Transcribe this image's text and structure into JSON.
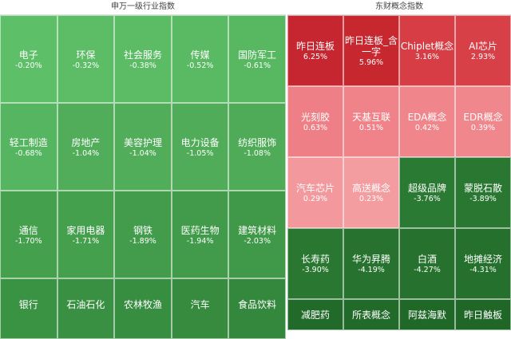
{
  "chart_data": [
    {
      "type": "heatmap",
      "title": "申万一级行业指数",
      "columns": 5,
      "unit": "%",
      "cells": [
        {
          "name": "电子",
          "value": -0.2,
          "label": "-0.20%",
          "color": "#5dbf67"
        },
        {
          "name": "环保",
          "value": -0.32,
          "label": "-0.32%",
          "color": "#5cbd66"
        },
        {
          "name": "社会服务",
          "value": -0.38,
          "label": "-0.38%",
          "color": "#5bbc65"
        },
        {
          "name": "传媒",
          "value": -0.52,
          "label": "-0.52%",
          "color": "#5aba63"
        },
        {
          "name": "国防军工",
          "value": -0.61,
          "label": "-0.61%",
          "color": "#58b862"
        },
        {
          "name": "轻工制造",
          "value": -0.68,
          "label": "-0.68%",
          "color": "#56b560"
        },
        {
          "name": "房地产",
          "value": -1.04,
          "label": "-1.04%",
          "color": "#51ad5a"
        },
        {
          "name": "美容护理",
          "value": -1.04,
          "label": "-1.04%",
          "color": "#51ad5a"
        },
        {
          "name": "电力设备",
          "value": -1.05,
          "label": "-1.05%",
          "color": "#50ac59"
        },
        {
          "name": "纺织服饰",
          "value": -1.08,
          "label": "-1.08%",
          "color": "#4fab58"
        },
        {
          "name": "通信",
          "value": -1.7,
          "label": "-1.70%",
          "color": "#45a04e"
        },
        {
          "name": "家用电器",
          "value": -1.71,
          "label": "-1.71%",
          "color": "#45a04e"
        },
        {
          "name": "钢铁",
          "value": -1.89,
          "label": "-1.89%",
          "color": "#429c4b"
        },
        {
          "name": "医药生物",
          "value": -1.94,
          "label": "-1.94%",
          "color": "#419b4a"
        },
        {
          "name": "建筑材料",
          "value": -2.03,
          "label": "-2.03%",
          "color": "#409948"
        },
        {
          "name": "银行",
          "value": null,
          "label": "",
          "color": "#3a9243"
        },
        {
          "name": "石油石化",
          "value": null,
          "label": "",
          "color": "#399042"
        },
        {
          "name": "农林牧渔",
          "value": null,
          "label": "",
          "color": "#378d40"
        },
        {
          "name": "汽车",
          "value": null,
          "label": "",
          "color": "#368b3f"
        },
        {
          "name": "食品饮料",
          "value": null,
          "label": "",
          "color": "#34883d"
        }
      ]
    },
    {
      "type": "heatmap",
      "title": "东财概念指数",
      "columns": 4,
      "unit": "%",
      "cells": [
        {
          "name": "昨日连板",
          "value": 6.25,
          "label": "6.25%",
          "color": "#c52630"
        },
        {
          "name": "昨日连板_含\n一字",
          "value": 5.96,
          "label": "5.96%",
          "color": "#c7282f"
        },
        {
          "name": "Chiplet概念",
          "value": 3.16,
          "label": "3.16%",
          "color": "#d63d45"
        },
        {
          "name": "AI芯片",
          "value": 2.93,
          "label": "2.93%",
          "color": "#d84048"
        },
        {
          "name": "光刻胶",
          "value": 0.63,
          "label": "0.63%",
          "color": "#ee7f86"
        },
        {
          "name": "天基互联",
          "value": 0.51,
          "label": "0.51%",
          "color": "#ef8389"
        },
        {
          "name": "EDA概念",
          "value": 0.42,
          "label": "0.42%",
          "color": "#f0868c"
        },
        {
          "name": "EDR概念",
          "value": 0.39,
          "label": "0.39%",
          "color": "#f0878d"
        },
        {
          "name": "汽车芯片",
          "value": 0.29,
          "label": "0.29%",
          "color": "#f3999e"
        },
        {
          "name": "高送概念",
          "value": 0.23,
          "label": "0.23%",
          "color": "#f49da1"
        },
        {
          "name": "超级品牌",
          "value": -3.76,
          "label": "-3.76%",
          "color": "#2b7a33"
        },
        {
          "name": "蒙脱石散",
          "value": -3.89,
          "label": "-3.89%",
          "color": "#297731"
        },
        {
          "name": "长寿药",
          "value": -3.9,
          "label": "-3.90%",
          "color": "#297731"
        },
        {
          "name": "华为昇腾",
          "value": -4.19,
          "label": "-4.19%",
          "color": "#26722e"
        },
        {
          "name": "白酒",
          "value": -4.27,
          "label": "-4.27%",
          "color": "#25712d"
        },
        {
          "name": "地摊经济",
          "value": -4.31,
          "label": "-4.31%",
          "color": "#24702c"
        },
        {
          "name": "减肥药",
          "value": null,
          "label": "",
          "color": "#216a29"
        },
        {
          "name": "所表概念",
          "value": null,
          "label": "",
          "color": "#216a29"
        },
        {
          "name": "阿兹海默",
          "value": null,
          "label": "",
          "color": "#206828"
        },
        {
          "name": "昨日触板",
          "value": null,
          "label": "",
          "color": "#1f6627"
        }
      ]
    }
  ]
}
